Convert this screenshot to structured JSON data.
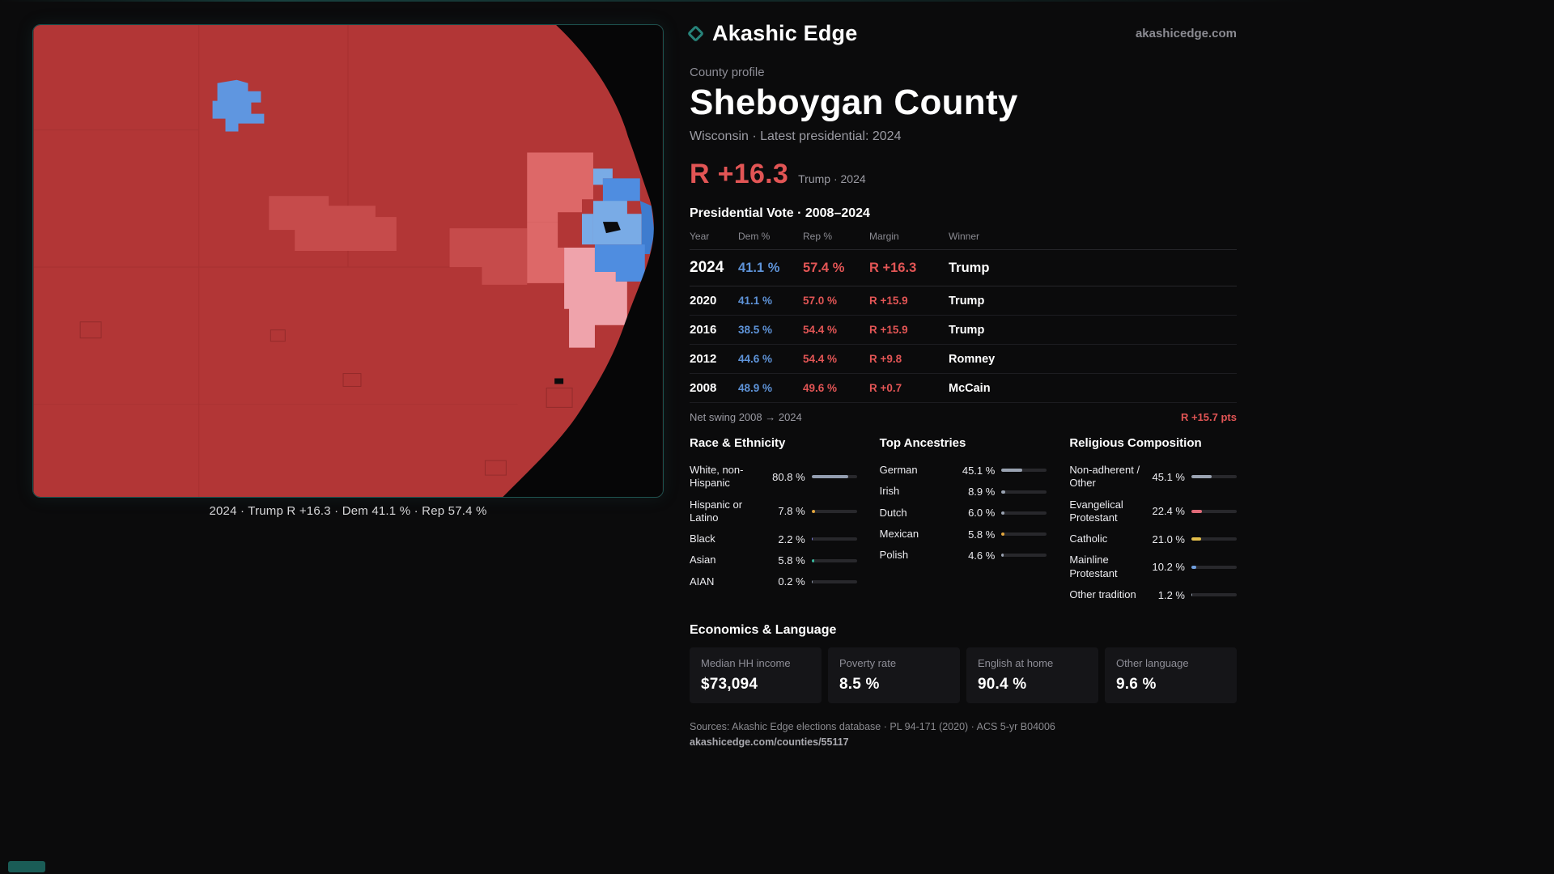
{
  "brand": {
    "name": "Akashic Edge",
    "domain": "akashicedge.com"
  },
  "profile": {
    "eyebrow": "County profile",
    "title": "Sheboygan County",
    "subtitle": "Wisconsin · Latest presidential: 2024",
    "headline_margin": "R +16.3",
    "headline_context": "Trump · 2024"
  },
  "map": {
    "caption": "2024 · Trump R +16.3 · Dem 41.1 % · Rep 57.4 %"
  },
  "vote_table": {
    "title": "Presidential Vote · 2008–2024",
    "columns": {
      "year": "Year",
      "dem": "Dem %",
      "rep": "Rep %",
      "margin": "Margin",
      "winner": "Winner"
    },
    "rows": [
      {
        "year": "2024",
        "dem": "41.1 %",
        "rep": "57.4 %",
        "margin": "R +16.3",
        "winner": "Trump"
      },
      {
        "year": "2020",
        "dem": "41.1 %",
        "rep": "57.0 %",
        "margin": "R +15.9",
        "winner": "Trump"
      },
      {
        "year": "2016",
        "dem": "38.5 %",
        "rep": "54.4 %",
        "margin": "R +15.9",
        "winner": "Trump"
      },
      {
        "year": "2012",
        "dem": "44.6 %",
        "rep": "54.4 %",
        "margin": "R +9.8",
        "winner": "Romney"
      },
      {
        "year": "2008",
        "dem": "48.9 %",
        "rep": "49.6 %",
        "margin": "R +0.7",
        "winner": "McCain"
      }
    ],
    "net_swing_label": "Net swing 2008 → 2024",
    "net_swing_value": "R +15.7 pts"
  },
  "race": {
    "title": "Race & Ethnicity",
    "rows": [
      {
        "label": "White, non-Hispanic",
        "value": "80.8 %",
        "pct": 80.8,
        "color": "#939db0"
      },
      {
        "label": "Hispanic or Latino",
        "value": "7.8 %",
        "pct": 7.8,
        "color": "#e3a63d"
      },
      {
        "label": "Black",
        "value": "2.2 %",
        "pct": 2.2,
        "color": "#7f7ce0"
      },
      {
        "label": "Asian",
        "value": "5.8 %",
        "pct": 5.8,
        "color": "#38b89d"
      },
      {
        "label": "AIAN",
        "value": "0.2 %",
        "pct": 0.2,
        "color": "#939db0"
      }
    ]
  },
  "ancestries": {
    "title": "Top Ancestries",
    "rows": [
      {
        "label": "German",
        "value": "45.1 %",
        "pct": 45.1,
        "color": "#9aa3b2"
      },
      {
        "label": "Irish",
        "value": "8.9 %",
        "pct": 8.9,
        "color": "#9aa3b2"
      },
      {
        "label": "Dutch",
        "value": "6.0 %",
        "pct": 6.0,
        "color": "#9aa3b2"
      },
      {
        "label": "Mexican",
        "value": "5.8 %",
        "pct": 5.8,
        "color": "#e3a63d"
      },
      {
        "label": "Polish",
        "value": "4.6 %",
        "pct": 4.6,
        "color": "#9aa3b2"
      }
    ]
  },
  "religion": {
    "title": "Religious Composition",
    "rows": [
      {
        "label": "Non-adherent / Other",
        "value": "45.1 %",
        "pct": 45.1,
        "color": "#9aa3b2"
      },
      {
        "label": "Evangelical Protestant",
        "value": "22.4 %",
        "pct": 22.4,
        "color": "#e06a78"
      },
      {
        "label": "Catholic",
        "value": "21.0 %",
        "pct": 21.0,
        "color": "#e4bf4b"
      },
      {
        "label": "Mainline Protestant",
        "value": "10.2 %",
        "pct": 10.2,
        "color": "#6f9ede"
      },
      {
        "label": "Other tradition",
        "value": "1.2 %",
        "pct": 1.2,
        "color": "#9aa3b2"
      }
    ]
  },
  "economics": {
    "title": "Economics & Language",
    "cards": [
      {
        "label": "Median HH income",
        "value": "$73,094"
      },
      {
        "label": "Poverty rate",
        "value": "8.5 %"
      },
      {
        "label": "English at home",
        "value": "90.4 %"
      },
      {
        "label": "Other language",
        "value": "9.6 %"
      }
    ]
  },
  "footer": {
    "sources": "Sources: Akashic Edge elections database · PL 94-171 (2020) · ACS 5-yr B04006",
    "permalink": "akashicedge.com/counties/55117"
  },
  "colors": {
    "dem_blue": "#5e93d8",
    "rep_red": "#e25555",
    "map_red": "#b23636",
    "accent_teal": "#1e5350"
  }
}
